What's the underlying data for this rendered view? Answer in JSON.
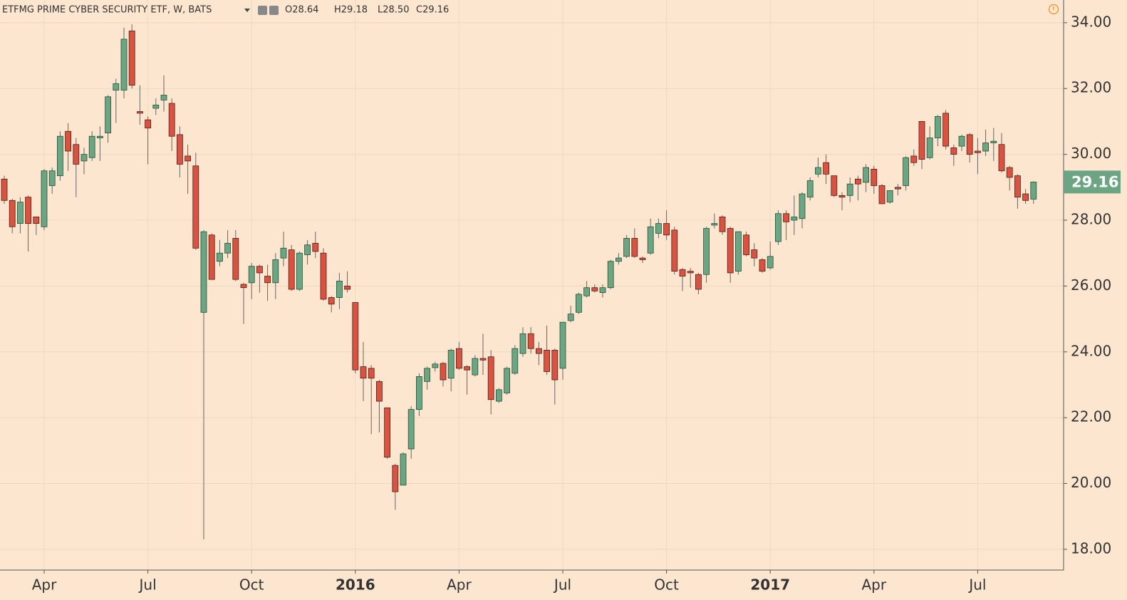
{
  "chart_data": {
    "type": "candlestick",
    "title": "ETFMG PRIME CYBER SECURITY ETF, W, BATS",
    "ohlc_legend": [
      "O28.64",
      "H29.18",
      "L28.50",
      "C29.16"
    ],
    "categories": [
      null,
      null,
      null,
      null,
      null,
      "Apr",
      null,
      null,
      null,
      null,
      null,
      null,
      null,
      null,
      null,
      null,
      null,
      null,
      "Jul",
      null,
      null,
      null,
      null,
      null,
      null,
      null,
      null,
      null,
      null,
      null,
      null,
      "Oct",
      null,
      null,
      null,
      null,
      null,
      null,
      null,
      null,
      null,
      null,
      null,
      null,
      "2016",
      null,
      null,
      null,
      null,
      null,
      null,
      null,
      null,
      null,
      null,
      null,
      null,
      "Apr",
      null,
      null,
      null,
      null,
      null,
      null,
      null,
      null,
      null,
      null,
      null,
      null,
      "Jul",
      null,
      null,
      null,
      null,
      null,
      null,
      null,
      null,
      null,
      null,
      null,
      null,
      "Oct",
      null,
      null,
      null,
      null,
      null,
      null,
      null,
      null,
      null,
      null,
      null,
      null,
      "2017",
      null,
      null,
      null,
      null,
      null,
      null,
      null,
      null,
      null,
      null,
      null,
      null,
      "Apr",
      null,
      null,
      null,
      null,
      null,
      null,
      null,
      null,
      null,
      null,
      null,
      null,
      "Jul",
      null,
      null,
      null,
      null,
      null,
      null,
      null
    ],
    "open": [
      29.25,
      28.6,
      27.9,
      28.7,
      28.1,
      27.8,
      29.05,
      29.35,
      30.7,
      30.3,
      29.8,
      29.9,
      30.5,
      30.65,
      31.95,
      31.95,
      33.75,
      31.3,
      31.05,
      31.4,
      31.65,
      31.55,
      30.6,
      29.95,
      29.65,
      25.2,
      27.55,
      26.75,
      27.0,
      27.45,
      26.05,
      26.1,
      26.6,
      26.3,
      26.1,
      26.85,
      27.1,
      25.9,
      26.95,
      27.3,
      27.0,
      25.65,
      25.65,
      26.0,
      25.5,
      23.55,
      23.5,
      23.1,
      22.3,
      20.55,
      19.95,
      21.05,
      22.25,
      23.1,
      23.52,
      23.65,
      23.2,
      24.1,
      23.55,
      23.3,
      23.8,
      23.85,
      22.5,
      22.75,
      23.35,
      23.95,
      24.55,
      24.1,
      24.05,
      24.05,
      23.5,
      24.95,
      25.2,
      25.7,
      25.95,
      25.8,
      25.95,
      26.75,
      26.9,
      27.45,
      26.85,
      27.0,
      27.6,
      27.9,
      27.7,
      26.5,
      26.45,
      26.35,
      26.35,
      27.85,
      28.1,
      27.75,
      26.45,
      27.55,
      27.1,
      26.8,
      26.55,
      27.35,
      28.2,
      28.0,
      28.05,
      28.7,
      29.4,
      29.75,
      29.35,
      28.75,
      28.75,
      29.25,
      29.15,
      29.55,
      29.05,
      28.55,
      29.0,
      29.05,
      29.95,
      31.0,
      29.9,
      30.5,
      31.25,
      30.2,
      30.25,
      30.6,
      30.1,
      30.1,
      30.35,
      30.3,
      29.6,
      29.35,
      28.8,
      28.64
    ],
    "high": [
      29.35,
      28.65,
      28.7,
      28.75,
      28.1,
      29.55,
      29.6,
      30.7,
      30.95,
      30.5,
      30.2,
      30.7,
      30.85,
      31.8,
      32.3,
      33.85,
      33.95,
      32.1,
      31.15,
      31.7,
      32.4,
      31.7,
      30.85,
      30.3,
      30.05,
      27.7,
      27.6,
      27.4,
      27.7,
      27.7,
      26.1,
      26.7,
      26.65,
      26.65,
      27.0,
      27.65,
      27.25,
      27.05,
      27.4,
      27.65,
      27.15,
      25.7,
      26.4,
      26.45,
      25.5,
      24.3,
      23.6,
      23.15,
      22.3,
      20.6,
      20.95,
      22.35,
      23.35,
      23.55,
      23.7,
      23.7,
      24.1,
      24.3,
      23.6,
      23.9,
      24.55,
      24.05,
      22.9,
      23.55,
      24.2,
      24.75,
      24.75,
      24.3,
      24.8,
      24.1,
      24.9,
      25.4,
      25.8,
      26.15,
      26.05,
      26.05,
      26.8,
      27.0,
      27.55,
      27.75,
      26.9,
      28.05,
      28.05,
      28.3,
      27.8,
      26.55,
      26.55,
      26.4,
      27.8,
      28.2,
      28.15,
      27.8,
      27.65,
      27.65,
      27.3,
      26.85,
      27.35,
      28.3,
      28.3,
      28.75,
      28.85,
      29.3,
      29.9,
      30.0,
      29.35,
      28.85,
      29.3,
      29.35,
      29.7,
      29.65,
      29.1,
      28.9,
      29.1,
      29.95,
      30.15,
      31.0,
      30.85,
      31.2,
      31.35,
      30.3,
      30.6,
      30.65,
      30.5,
      30.75,
      30.8,
      30.65,
      29.65,
      29.4,
      28.95,
      29.18
    ],
    "low": [
      28.5,
      27.6,
      27.6,
      27.05,
      27.55,
      27.7,
      28.8,
      29.2,
      29.5,
      28.7,
      29.4,
      29.8,
      29.8,
      30.35,
      30.95,
      31.7,
      32.0,
      30.9,
      29.7,
      31.2,
      31.3,
      30.1,
      29.3,
      28.8,
      27.1,
      18.3,
      26.2,
      26.6,
      26.85,
      26.15,
      24.85,
      25.6,
      25.8,
      25.55,
      25.6,
      26.6,
      25.85,
      25.85,
      26.65,
      26.85,
      25.55,
      25.2,
      25.3,
      25.8,
      23.35,
      22.5,
      21.5,
      21.55,
      20.75,
      19.2,
      19.95,
      20.75,
      22.05,
      22.85,
      23.4,
      22.95,
      22.8,
      23.45,
      22.7,
      23.25,
      23.3,
      22.1,
      22.45,
      22.7,
      23.3,
      23.85,
      23.95,
      23.6,
      23.3,
      22.4,
      23.15,
      24.9,
      25.15,
      25.65,
      25.8,
      25.65,
      25.9,
      26.65,
      26.85,
      26.85,
      26.7,
      26.95,
      27.45,
      27.4,
      26.35,
      25.85,
      25.95,
      25.75,
      26.1,
      27.75,
      27.55,
      26.1,
      26.35,
      26.9,
      26.6,
      26.4,
      26.5,
      27.25,
      27.4,
      27.55,
      27.75,
      28.6,
      29.3,
      29.1,
      28.7,
      28.3,
      28.55,
      28.6,
      28.85,
      28.8,
      28.5,
      28.5,
      28.75,
      28.9,
      29.65,
      29.55,
      29.85,
      30.25,
      30.15,
      29.65,
      30.1,
      29.75,
      29.4,
      29.95,
      29.8,
      29.45,
      28.9,
      28.35,
      28.5,
      28.5
    ],
    "close": [
      28.6,
      27.8,
      28.55,
      27.9,
      27.9,
      29.5,
      29.5,
      30.55,
      30.1,
      29.7,
      30.0,
      30.55,
      30.55,
      31.75,
      32.15,
      33.5,
      32.1,
      31.25,
      30.8,
      31.5,
      31.8,
      30.55,
      29.7,
      29.8,
      27.15,
      27.65,
      26.2,
      27.0,
      27.3,
      26.2,
      25.95,
      26.6,
      26.4,
      26.1,
      26.8,
      27.15,
      25.9,
      27.0,
      27.25,
      27.05,
      25.6,
      25.45,
      26.15,
      25.9,
      23.45,
      23.2,
      23.2,
      22.5,
      20.8,
      19.75,
      20.9,
      22.25,
      23.25,
      23.5,
      23.63,
      23.15,
      24.05,
      23.5,
      23.45,
      23.8,
      23.75,
      22.55,
      22.85,
      23.5,
      24.1,
      24.55,
      24.1,
      23.95,
      23.4,
      23.15,
      24.9,
      25.15,
      25.75,
      25.95,
      25.85,
      25.95,
      26.75,
      26.85,
      27.45,
      26.9,
      26.8,
      27.8,
      27.9,
      27.55,
      26.45,
      26.3,
      26.4,
      25.9,
      27.75,
      27.9,
      27.65,
      26.4,
      27.65,
      26.95,
      26.85,
      26.45,
      26.9,
      28.2,
      27.95,
      28.1,
      28.8,
      29.2,
      29.6,
      29.4,
      28.75,
      28.7,
      29.1,
      29.1,
      29.6,
      29.05,
      28.5,
      28.9,
      28.95,
      29.9,
      29.75,
      29.85,
      30.5,
      31.15,
      30.25,
      30.0,
      30.55,
      30.0,
      30.05,
      30.35,
      30.4,
      29.5,
      29.3,
      28.7,
      28.6,
      29.16
    ],
    "up_color": "#6ba583",
    "down_color": "#d75442",
    "last_price": 29.16,
    "ylim": [
      17.37,
      34.69
    ],
    "yticks": [
      {
        "value": 18,
        "label": "18.00"
      },
      {
        "value": 20,
        "label": "20.00"
      },
      {
        "value": 22,
        "label": "22.00"
      },
      {
        "value": 24,
        "label": "24.00"
      },
      {
        "value": 26,
        "label": "26.00"
      },
      {
        "value": 28,
        "label": "28.00"
      },
      {
        "value": 30,
        "label": "30.00"
      },
      {
        "value": 32,
        "label": "32.00"
      },
      {
        "value": 34,
        "label": "34.00"
      }
    ],
    "grid": true
  }
}
